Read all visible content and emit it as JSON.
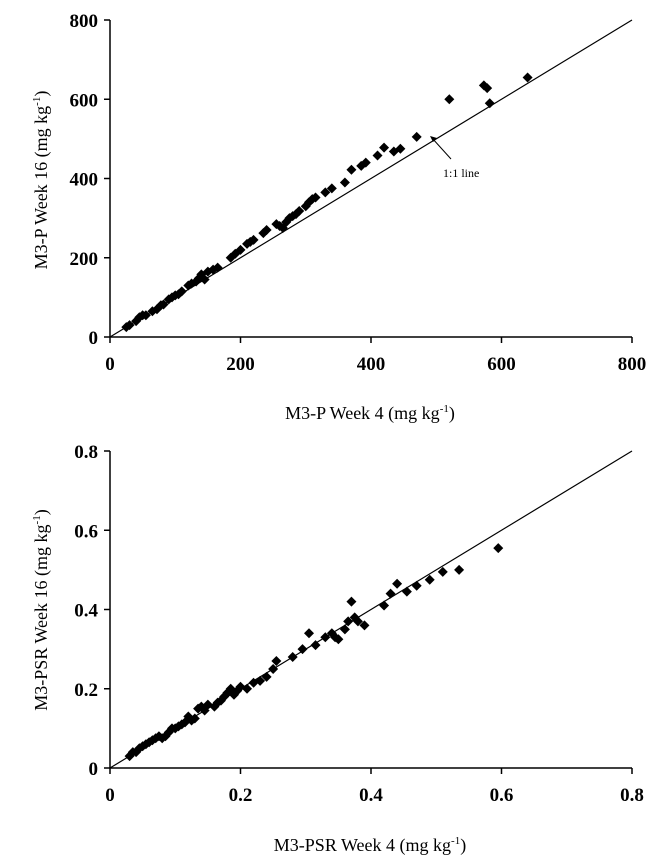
{
  "chart_data": [
    {
      "type": "scatter",
      "title": "",
      "xlabel": "M3-P Week 4 (mg kg",
      "xlabel_sup": "-1",
      "xlabel_close": ")",
      "ylabel": "M3-P Week 16 (mg kg",
      "ylabel_sup": "-1",
      "ylabel_close": ")",
      "xlim": [
        0,
        800
      ],
      "ylim": [
        0,
        800
      ],
      "xticks": [
        "0",
        "200",
        "400",
        "600",
        "800"
      ],
      "yticks": [
        "0",
        "200",
        "400",
        "600",
        "800"
      ],
      "grid": false,
      "reference_line": {
        "label": "1:1 line",
        "from": [
          0,
          0
        ],
        "to": [
          800,
          800
        ]
      },
      "x": [
        25,
        30,
        40,
        45,
        50,
        55,
        65,
        72,
        78,
        82,
        90,
        95,
        100,
        105,
        110,
        120,
        125,
        132,
        136,
        140,
        145,
        150,
        158,
        165,
        185,
        192,
        200,
        210,
        215,
        220,
        235,
        240,
        255,
        260,
        265,
        270,
        275,
        280,
        285,
        290,
        300,
        305,
        310,
        315,
        330,
        340,
        360,
        370,
        385,
        392,
        410,
        420,
        435,
        445,
        470,
        520,
        573,
        578,
        582,
        640
      ],
      "y": [
        25,
        30,
        40,
        50,
        55,
        55,
        65,
        70,
        80,
        82,
        95,
        100,
        105,
        108,
        115,
        130,
        135,
        140,
        148,
        158,
        145,
        165,
        170,
        175,
        200,
        210,
        220,
        235,
        240,
        245,
        262,
        270,
        285,
        280,
        275,
        290,
        300,
        305,
        310,
        318,
        330,
        340,
        348,
        352,
        365,
        375,
        390,
        422,
        432,
        440,
        458,
        478,
        468,
        475,
        505,
        600,
        635,
        628,
        590,
        655
      ]
    },
    {
      "type": "scatter",
      "title": "",
      "xlabel": "M3-PSR Week 4 (mg kg",
      "xlabel_sup": "-1",
      "xlabel_close": ")",
      "ylabel": "M3-PSR Week 16 (mg kg",
      "ylabel_sup": "-1",
      "ylabel_close": ")",
      "xlim": [
        0,
        0.8
      ],
      "ylim": [
        0,
        0.8
      ],
      "xticks": [
        "0",
        "0.2",
        "0.4",
        "0.6",
        "0.8"
      ],
      "yticks": [
        "0",
        "0.2",
        "0.4",
        "0.6",
        "0.8"
      ],
      "grid": false,
      "reference_line": {
        "label": "",
        "from": [
          0,
          0
        ],
        "to": [
          0.8,
          0.8
        ]
      },
      "x": [
        0.03,
        0.035,
        0.04,
        0.045,
        0.05,
        0.055,
        0.06,
        0.065,
        0.07,
        0.075,
        0.08,
        0.085,
        0.09,
        0.095,
        0.1,
        0.105,
        0.11,
        0.115,
        0.12,
        0.125,
        0.13,
        0.135,
        0.14,
        0.145,
        0.15,
        0.16,
        0.165,
        0.17,
        0.175,
        0.18,
        0.185,
        0.19,
        0.195,
        0.2,
        0.21,
        0.22,
        0.23,
        0.24,
        0.25,
        0.255,
        0.28,
        0.295,
        0.305,
        0.315,
        0.33,
        0.34,
        0.345,
        0.35,
        0.36,
        0.365,
        0.37,
        0.375,
        0.38,
        0.39,
        0.42,
        0.43,
        0.44,
        0.455,
        0.47,
        0.49,
        0.51,
        0.535,
        0.595
      ],
      "y": [
        0.03,
        0.04,
        0.04,
        0.05,
        0.055,
        0.06,
        0.065,
        0.07,
        0.075,
        0.08,
        0.075,
        0.08,
        0.09,
        0.1,
        0.1,
        0.105,
        0.11,
        0.115,
        0.13,
        0.12,
        0.125,
        0.15,
        0.155,
        0.145,
        0.16,
        0.155,
        0.165,
        0.17,
        0.18,
        0.19,
        0.2,
        0.185,
        0.195,
        0.205,
        0.2,
        0.215,
        0.22,
        0.23,
        0.25,
        0.27,
        0.28,
        0.3,
        0.34,
        0.31,
        0.33,
        0.34,
        0.33,
        0.325,
        0.35,
        0.37,
        0.42,
        0.38,
        0.37,
        0.36,
        0.41,
        0.44,
        0.465,
        0.445,
        0.46,
        0.475,
        0.495,
        0.5,
        0.555
      ]
    }
  ]
}
